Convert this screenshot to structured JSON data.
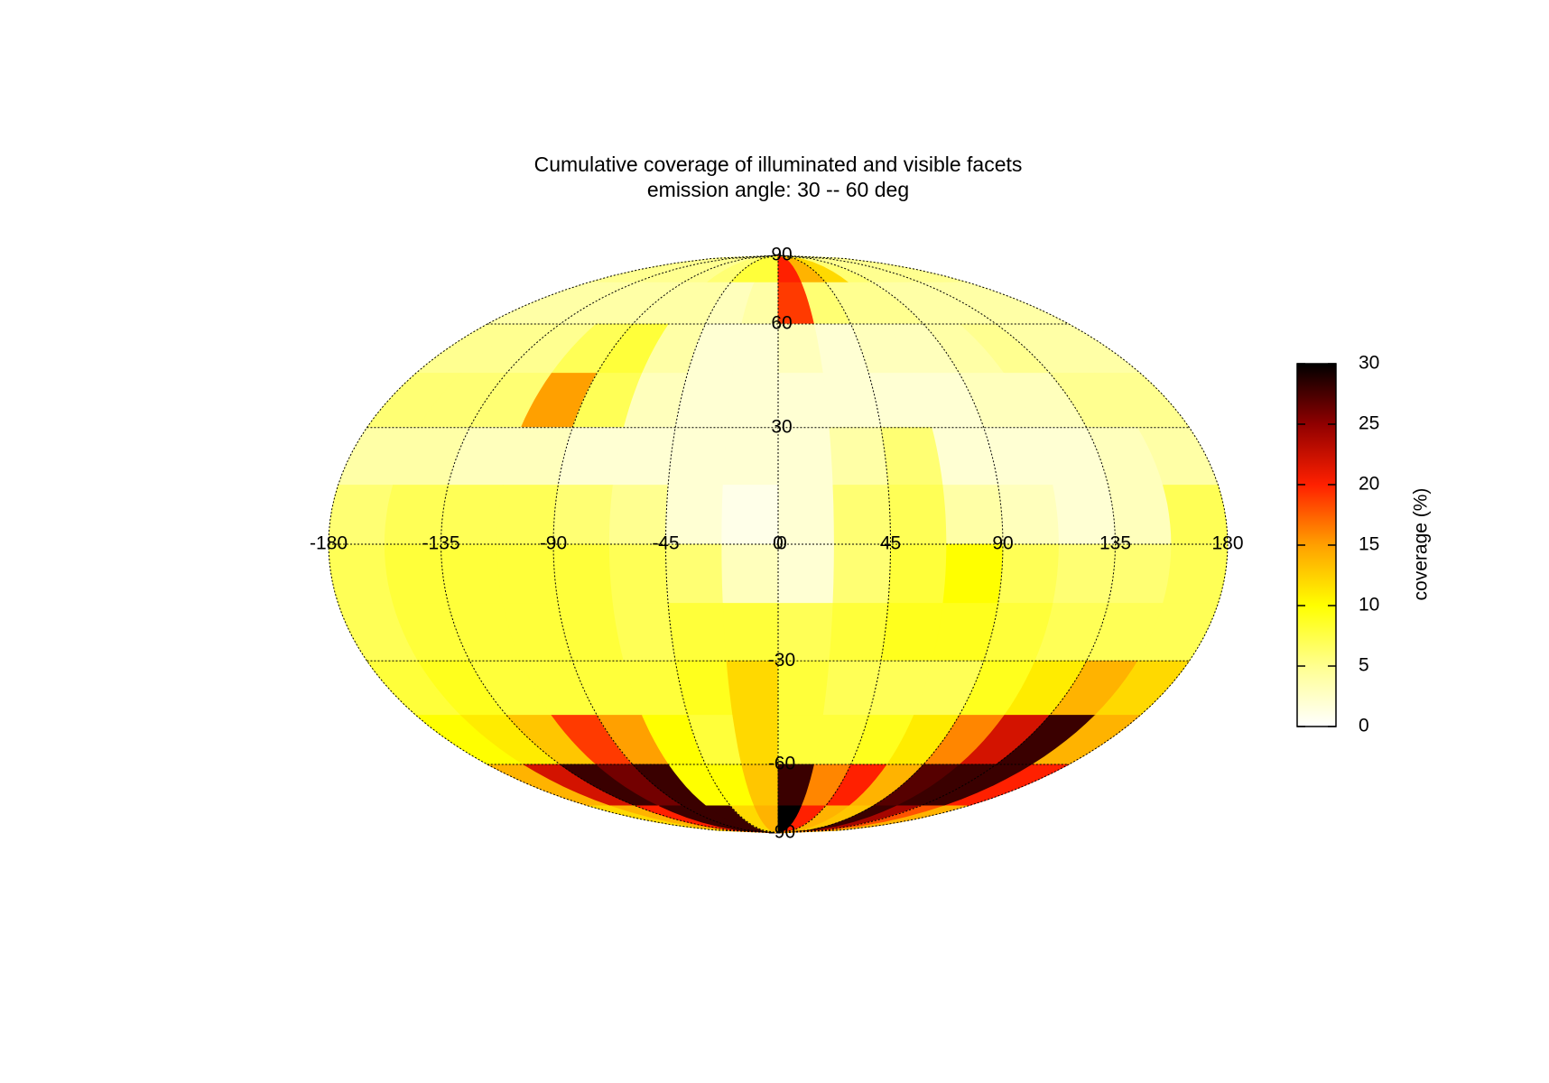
{
  "chart_data": {
    "type": "heatmap",
    "projection": "mollweide",
    "title": "Cumulative coverage of illuminated and visible facets",
    "subtitle": "emission angle: 30 -- 60 deg",
    "xbins": [
      -180,
      -157.5,
      -135,
      -112.5,
      -90,
      -67.5,
      -45,
      -22.5,
      0,
      22.5,
      45,
      67.5,
      90,
      112.5,
      135,
      157.5,
      180
    ],
    "ybins": [
      90,
      75,
      60,
      45,
      30,
      15,
      0,
      -15,
      -30,
      -45,
      -60,
      -75,
      -90
    ],
    "values": [
      [
        5,
        5,
        5,
        5,
        5,
        6,
        8,
        8,
        20,
        14,
        12,
        6,
        5,
        5,
        5,
        5
      ],
      [
        4,
        4,
        4,
        4,
        4,
        4,
        3,
        4,
        19,
        6,
        5,
        5,
        4,
        4,
        4,
        4
      ],
      [
        5,
        5,
        5,
        7,
        8,
        4,
        2,
        2,
        3,
        2,
        3,
        3,
        4,
        5,
        4,
        4
      ],
      [
        6,
        6,
        6,
        15,
        7,
        3,
        2,
        2,
        2,
        2,
        2,
        2,
        3,
        3,
        5,
        5
      ],
      [
        4,
        4,
        3,
        3,
        2,
        2,
        2,
        2,
        2,
        4,
        6,
        2,
        2,
        2,
        3,
        4
      ],
      [
        6,
        7,
        7,
        7,
        6,
        5,
        2,
        1,
        2,
        6,
        7,
        4,
        3,
        2,
        3,
        7
      ],
      [
        7,
        8,
        8,
        8,
        8,
        7,
        6,
        3,
        2,
        6,
        8,
        10,
        7,
        6,
        6,
        7
      ],
      [
        7,
        8,
        8,
        8,
        8,
        7,
        8,
        8,
        7,
        8,
        9,
        9,
        8,
        7,
        7,
        7
      ],
      [
        8,
        9,
        8,
        8,
        8,
        8,
        9,
        12,
        8,
        7,
        7,
        7,
        9,
        11,
        14,
        12
      ],
      [
        10,
        11,
        13,
        19,
        15,
        10,
        8,
        12,
        8,
        8,
        9,
        11,
        16,
        22,
        28,
        14
      ],
      [
        14,
        22,
        28,
        26,
        28,
        10,
        10,
        13,
        28,
        16,
        20,
        14,
        27,
        28,
        28,
        20
      ],
      [
        12,
        14,
        20,
        28,
        28,
        28,
        12,
        14,
        30,
        20,
        14,
        13,
        28,
        24,
        18,
        14
      ]
    ],
    "xlim": [
      -180,
      180
    ],
    "xticks": [
      -180,
      -135,
      -90,
      -45,
      0,
      45,
      90,
      135,
      180
    ],
    "ylim": [
      -90,
      90
    ],
    "yticks": [
      -90,
      -60,
      -30,
      0,
      30,
      60,
      90
    ],
    "zlim": [
      0,
      30
    ],
    "zticks": [
      0,
      5,
      10,
      15,
      20,
      25,
      30
    ],
    "colorbar_label": "coverage (%)",
    "colormap": [
      "#ffffff",
      "#ffff90",
      "#ffff00",
      "#ffa000",
      "#ff2000",
      "#900000",
      "#000000"
    ],
    "grid": true
  }
}
